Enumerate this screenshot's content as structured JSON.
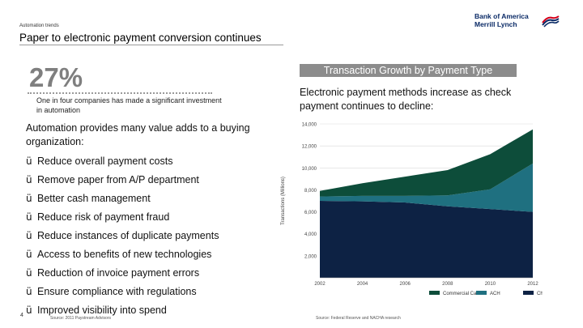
{
  "header": {
    "kicker": "Automation trends",
    "title": "Paper to electronic payment conversion continues",
    "logo_line1": "Bank of America",
    "logo_line2": "Merrill Lynch",
    "logo_colors": {
      "red": "#d4001a",
      "navy": "#0a2a66"
    }
  },
  "stat": {
    "value": "27%",
    "note": "One in four companies has made a significant investment in automation"
  },
  "body": {
    "intro": "Automation provides many value adds to a buying organization:",
    "check_symbol": "ü",
    "bullets": [
      "Reduce overall payment costs",
      "Remove paper from A/P department",
      "Better cash management",
      "Reduce risk of payment fraud",
      "Reduce instances of duplicate payments",
      "Access to benefits of new technologies",
      "Reduction of invoice payment errors",
      "Ensure compliance with regulations",
      "Improved visibility into spend"
    ]
  },
  "footer": {
    "page_number": "4",
    "source_left": "Source: 2011 Paystream Advisors",
    "source_right": "Source: Federal Reserve and NACHA research"
  },
  "chart_header": "Transaction Growth by Payment Type",
  "chart_description": "Electronic payment methods increase as check payment continues to decline:",
  "chart_data": {
    "type": "area",
    "stacked": true,
    "title": "Transaction Growth by Payment Type",
    "ylabel": "Transactions (Millions)",
    "xlabel": "",
    "x": [
      2002,
      2004,
      2006,
      2008,
      2010,
      2012
    ],
    "x_tick_labels": [
      "2002",
      "2004",
      "2006",
      "2008",
      "2010",
      "2012"
    ],
    "y_tick_labels": [
      "2,000",
      "4,000",
      "6,000",
      "8,000",
      "10,000",
      "12,000",
      "14,000"
    ],
    "y_ticks": [
      2000,
      4000,
      6000,
      8000,
      10000,
      12000,
      14000
    ],
    "ylim": [
      0,
      14000
    ],
    "grid": true,
    "legend": "bottom",
    "series": [
      {
        "name": "Check",
        "color": "#0d2244",
        "values": [
          7000,
          6950,
          6850,
          6500,
          6250,
          6000
        ]
      },
      {
        "name": "ACH",
        "color": "#1f7080",
        "values": [
          400,
          500,
          600,
          1000,
          1800,
          4400
        ]
      },
      {
        "name": "Commercial Cards",
        "color": "#0d4d3a",
        "values": [
          500,
          1150,
          1750,
          2300,
          3200,
          3100
        ]
      }
    ]
  }
}
